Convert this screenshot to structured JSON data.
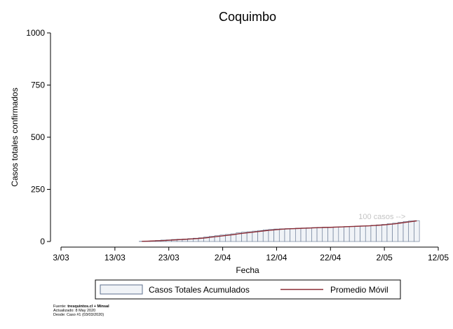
{
  "chart_data": {
    "type": "bar",
    "title": "Coquimbo",
    "xlabel": "Fecha",
    "ylabel": "Casos totales confirmados",
    "ylim": [
      0,
      1000
    ],
    "yticks": [
      0,
      250,
      500,
      750,
      1000
    ],
    "xlim": [
      "2020-03-03",
      "2020-05-12"
    ],
    "xticks": [
      {
        "date": "2020-03-03",
        "label": "3/03"
      },
      {
        "date": "2020-03-13",
        "label": "13/03"
      },
      {
        "date": "2020-03-23",
        "label": "23/03"
      },
      {
        "date": "2020-04-02",
        "label": "2/04"
      },
      {
        "date": "2020-04-12",
        "label": "12/04"
      },
      {
        "date": "2020-04-22",
        "label": "22/04"
      },
      {
        "date": "2020-05-02",
        "label": "2/05"
      },
      {
        "date": "2020-05-12",
        "label": "12/05"
      }
    ],
    "grid": false,
    "legend_position": "bottom",
    "annotation": "100 casos -->",
    "x": [
      "2020-03-18",
      "2020-03-19",
      "2020-03-20",
      "2020-03-21",
      "2020-03-22",
      "2020-03-23",
      "2020-03-24",
      "2020-03-25",
      "2020-03-26",
      "2020-03-27",
      "2020-03-28",
      "2020-03-29",
      "2020-03-30",
      "2020-03-31",
      "2020-04-01",
      "2020-04-02",
      "2020-04-03",
      "2020-04-04",
      "2020-04-05",
      "2020-04-06",
      "2020-04-07",
      "2020-04-08",
      "2020-04-09",
      "2020-04-10",
      "2020-04-11",
      "2020-04-12",
      "2020-04-13",
      "2020-04-14",
      "2020-04-15",
      "2020-04-16",
      "2020-04-17",
      "2020-04-18",
      "2020-04-19",
      "2020-04-20",
      "2020-04-21",
      "2020-04-22",
      "2020-04-23",
      "2020-04-24",
      "2020-04-25",
      "2020-04-26",
      "2020-04-27",
      "2020-04-28",
      "2020-04-29",
      "2020-04-30",
      "2020-05-01",
      "2020-05-02",
      "2020-05-03",
      "2020-05-04",
      "2020-05-05",
      "2020-05-06",
      "2020-05-07",
      "2020-05-08"
    ],
    "series": [
      {
        "name": "Casos Totales Acumulados",
        "color": "#f0f3f7",
        "edge": "#5d6f8c",
        "values": [
          1,
          2,
          3,
          5,
          7,
          8,
          10,
          11,
          12,
          14,
          16,
          18,
          22,
          25,
          28,
          31,
          34,
          37,
          42,
          45,
          47,
          50,
          53,
          56,
          58,
          60,
          61,
          62,
          63,
          64,
          65,
          66,
          67,
          68,
          69,
          69,
          70,
          71,
          72,
          73,
          74,
          75,
          76,
          78,
          80,
          82,
          85,
          88,
          92,
          96,
          99,
          100
        ]
      },
      {
        "name": "Promedio Móvil",
        "color": "#8b2c35",
        "values": [
          1,
          1.5,
          2.5,
          3.5,
          4.5,
          6,
          7.5,
          9,
          10.5,
          12,
          13.5,
          15.5,
          18,
          21,
          24,
          27,
          30,
          33,
          37,
          40,
          43,
          46,
          49,
          52,
          54.5,
          57,
          59,
          60.5,
          61.5,
          62.5,
          63.5,
          64.5,
          65.5,
          66.5,
          67.5,
          68,
          69,
          70,
          71,
          72,
          73,
          74,
          75,
          76.5,
          78,
          80,
          82.5,
          85,
          88.5,
          92,
          95.5,
          99
        ]
      }
    ]
  },
  "source": {
    "line1_prefix": "Fuente: ",
    "line1_bold": "tresquintos.cl + Minsal",
    "line2": "Actualizado: 8 May 2020",
    "line3": "Desde: Caso #1  (03/03/2020)"
  }
}
